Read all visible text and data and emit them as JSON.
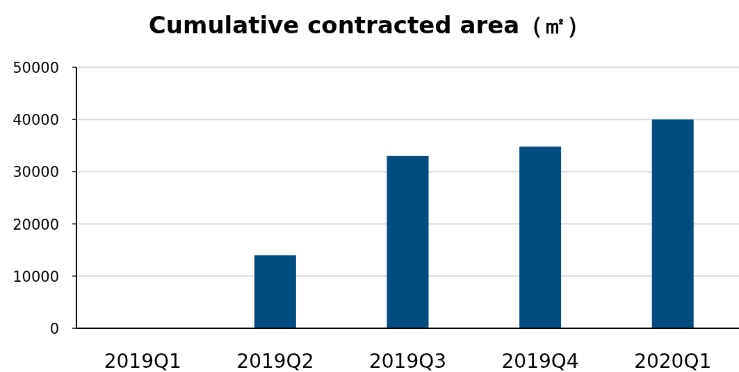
{
  "chart_data": {
    "type": "bar",
    "title": "Cumulative contracted area（㎡）",
    "categories": [
      "2019Q1",
      "2019Q2",
      "2019Q3",
      "2019Q4",
      "2020Q1"
    ],
    "values": [
      0,
      14000,
      33000,
      34800,
      40000
    ],
    "color": "#004b80",
    "ylim": [
      0,
      50000
    ],
    "yticks": [
      0,
      10000,
      20000,
      30000,
      40000,
      50000
    ],
    "grid": "y"
  }
}
